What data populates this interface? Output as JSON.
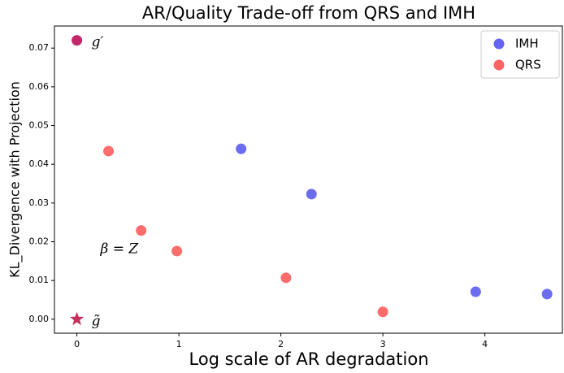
{
  "chart_data": {
    "type": "scatter",
    "title": "AR/Quality Trade-off from QRS and IMH",
    "x_label": "Log scale of AR degradation",
    "y_label": "KL_Divergence with Projection",
    "series": [
      {
        "name": "IMH",
        "color": "#6464f0",
        "x": [
          1.61,
          2.3,
          3.91,
          4.61
        ],
        "values": [
          0.044,
          0.0323,
          0.0071,
          0.0065
        ]
      },
      {
        "name": "QRS",
        "color": "#ff6464",
        "x": [
          0.31,
          0.63,
          0.98,
          2.05,
          3.0
        ],
        "values": [
          0.0434,
          0.0229,
          0.0176,
          0.0107,
          0.0019
        ]
      }
    ],
    "markers": [
      {
        "label": "g′",
        "shape": "circle",
        "color": "#c2266a",
        "x": 0,
        "y": 0.072
      },
      {
        "label": "g̃",
        "shape": "star",
        "color": "#c9305a",
        "x": 0,
        "y": 0
      }
    ],
    "annotations": [
      {
        "text": "β = Z",
        "x": 0.23,
        "y": 0.018
      }
    ],
    "xlim": [
      -0.22,
      4.76
    ],
    "ylim": [
      -0.0036,
      0.0757
    ],
    "xticks": [
      0,
      1,
      2,
      3,
      4
    ],
    "yticks": [
      {
        "value": 0,
        "label": "0.00"
      },
      {
        "value": 0.01,
        "label": "0.01"
      },
      {
        "value": 0.02,
        "label": "0.02"
      },
      {
        "value": 0.03,
        "label": "0.03"
      },
      {
        "value": 0.04,
        "label": "0.04"
      },
      {
        "value": 0.05,
        "label": "0.05"
      },
      {
        "value": 0.06,
        "label": "0.06"
      },
      {
        "value": 0.07,
        "label": "0.07"
      }
    ],
    "legend": "upper right",
    "grid": false
  }
}
